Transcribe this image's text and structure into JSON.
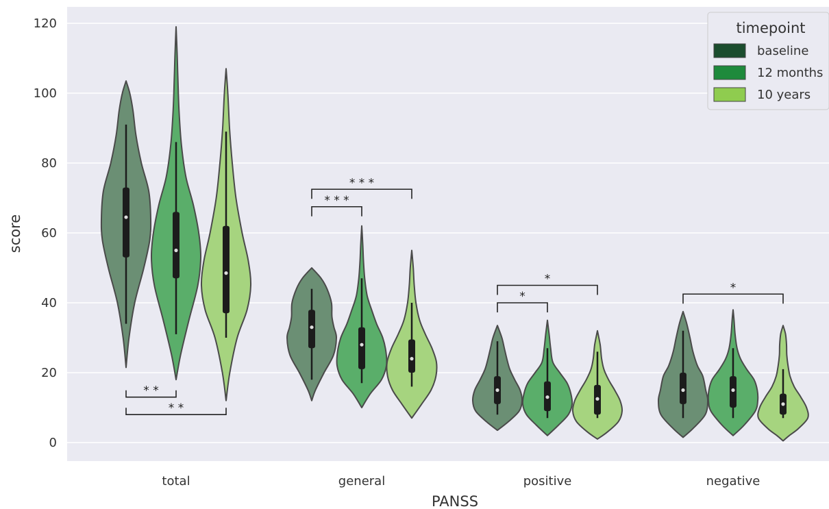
{
  "chart_data": {
    "type": "violin",
    "xlabel": "PANSS",
    "ylabel": "score",
    "ylim": [
      -5,
      123
    ],
    "yticks": [
      0,
      20,
      40,
      60,
      80,
      100,
      120
    ],
    "grid": true,
    "categories": [
      "total",
      "general",
      "positive",
      "negative"
    ],
    "legend": {
      "title": "timepoint",
      "placement": "top-right",
      "entries": [
        "baseline",
        "12 months",
        "10 years"
      ]
    },
    "colors": {
      "baseline": "#1b4d2e",
      "12 months": "#1e8a3c",
      "10 years": "#8fcc4f",
      "baseline_violin": "#6b8f74",
      "12 months_violin": "#5aae6a",
      "10 years_violin": "#a6d47f",
      "background": "#eaeaf2",
      "grid": "#ffffff",
      "outline": "#4a4a4a",
      "box": "#1c1c1c"
    },
    "series": [
      {
        "name": "baseline",
        "violins": [
          {
            "category": "total",
            "min": 21.5,
            "max": 103.5,
            "q1": 53,
            "median": 64.5,
            "q3": 73,
            "wlow": 34,
            "whigh": 91,
            "profile": [
              [
                21.5,
                0.0
              ],
              [
                30,
                0.12
              ],
              [
                40,
                0.35
              ],
              [
                50,
                0.72
              ],
              [
                58,
                0.96
              ],
              [
                64,
                1.0
              ],
              [
                72,
                0.92
              ],
              [
                80,
                0.62
              ],
              [
                88,
                0.4
              ],
              [
                95,
                0.28
              ],
              [
                100,
                0.15
              ],
              [
                103.5,
                0.0
              ]
            ]
          },
          {
            "category": "general",
            "min": 12,
            "max": 50,
            "q1": 27,
            "median": 33,
            "q3": 38,
            "wlow": 18,
            "whigh": 44,
            "profile": [
              [
                12,
                0.0
              ],
              [
                15,
                0.15
              ],
              [
                20,
                0.5
              ],
              [
                25,
                0.88
              ],
              [
                30,
                1.0
              ],
              [
                33,
                0.9
              ],
              [
                36,
                0.82
              ],
              [
                40,
                0.8
              ],
              [
                44,
                0.62
              ],
              [
                47,
                0.38
              ],
              [
                50,
                0.0
              ]
            ]
          },
          {
            "category": "positive",
            "min": 3.5,
            "max": 33.5,
            "q1": 11,
            "median": 15,
            "q3": 19,
            "wlow": 8,
            "whigh": 29,
            "profile": [
              [
                3.5,
                0.0
              ],
              [
                6,
                0.45
              ],
              [
                9,
                0.88
              ],
              [
                12,
                1.0
              ],
              [
                15,
                0.92
              ],
              [
                18,
                0.7
              ],
              [
                21,
                0.5
              ],
              [
                24,
                0.38
              ],
              [
                27,
                0.28
              ],
              [
                30,
                0.18
              ],
              [
                33.5,
                0.0
              ]
            ]
          },
          {
            "category": "negative",
            "min": 1.5,
            "max": 37.5,
            "q1": 11,
            "median": 15,
            "q3": 20,
            "wlow": 7,
            "whigh": 32,
            "profile": [
              [
                1.5,
                0.0
              ],
              [
                4,
                0.4
              ],
              [
                8,
                0.9
              ],
              [
                12,
                1.0
              ],
              [
                15,
                0.92
              ],
              [
                19,
                0.8
              ],
              [
                22,
                0.58
              ],
              [
                26,
                0.4
              ],
              [
                30,
                0.28
              ],
              [
                34,
                0.15
              ],
              [
                37.5,
                0.0
              ]
            ]
          }
        ]
      },
      {
        "name": "12 months",
        "violins": [
          {
            "category": "total",
            "min": 18,
            "max": 119,
            "q1": 47,
            "median": 55,
            "q3": 66,
            "wlow": 31,
            "whigh": 86,
            "profile": [
              [
                18,
                0.0
              ],
              [
                25,
                0.18
              ],
              [
                35,
                0.52
              ],
              [
                45,
                0.88
              ],
              [
                53,
                1.0
              ],
              [
                60,
                0.92
              ],
              [
                68,
                0.7
              ],
              [
                76,
                0.4
              ],
              [
                85,
                0.22
              ],
              [
                95,
                0.12
              ],
              [
                105,
                0.07
              ],
              [
                112,
                0.04
              ],
              [
                119,
                0.0
              ]
            ]
          },
          {
            "category": "general",
            "min": 10,
            "max": 62,
            "q1": 21,
            "median": 28,
            "q3": 33,
            "wlow": 17,
            "whigh": 47,
            "profile": [
              [
                10,
                0.0
              ],
              [
                14,
                0.35
              ],
              [
                18,
                0.8
              ],
              [
                22,
                1.0
              ],
              [
                26,
                0.98
              ],
              [
                30,
                0.85
              ],
              [
                34,
                0.6
              ],
              [
                38,
                0.4
              ],
              [
                42,
                0.22
              ],
              [
                47,
                0.12
              ],
              [
                52,
                0.07
              ],
              [
                57,
                0.04
              ],
              [
                62,
                0.0
              ]
            ]
          },
          {
            "category": "positive",
            "min": 2,
            "max": 35,
            "q1": 9,
            "median": 13,
            "q3": 17.5,
            "wlow": 7,
            "whigh": 27,
            "profile": [
              [
                2,
                0.0
              ],
              [
                5,
                0.45
              ],
              [
                8,
                0.85
              ],
              [
                11,
                1.0
              ],
              [
                14,
                0.95
              ],
              [
                17,
                0.8
              ],
              [
                20,
                0.5
              ],
              [
                23,
                0.22
              ],
              [
                27,
                0.13
              ],
              [
                31,
                0.07
              ],
              [
                35,
                0.0
              ]
            ]
          },
          {
            "category": "negative",
            "min": 2,
            "max": 38,
            "q1": 10,
            "median": 15,
            "q3": 19,
            "wlow": 7,
            "whigh": 27,
            "profile": [
              [
                2,
                0.0
              ],
              [
                5,
                0.45
              ],
              [
                9,
                0.9
              ],
              [
                12,
                1.0
              ],
              [
                15,
                0.98
              ],
              [
                18,
                0.85
              ],
              [
                21,
                0.55
              ],
              [
                24,
                0.3
              ],
              [
                27,
                0.16
              ],
              [
                31,
                0.08
              ],
              [
                35,
                0.04
              ],
              [
                38,
                0.0
              ]
            ]
          }
        ]
      },
      {
        "name": "10 years",
        "violins": [
          {
            "category": "total",
            "min": 12,
            "max": 107,
            "q1": 37,
            "median": 48.5,
            "q3": 62,
            "wlow": 30,
            "whigh": 89,
            "profile": [
              [
                12,
                0.0
              ],
              [
                20,
                0.15
              ],
              [
                30,
                0.45
              ],
              [
                38,
                0.85
              ],
              [
                45,
                1.0
              ],
              [
                52,
                0.9
              ],
              [
                60,
                0.65
              ],
              [
                70,
                0.4
              ],
              [
                80,
                0.25
              ],
              [
                90,
                0.14
              ],
              [
                100,
                0.07
              ],
              [
                107,
                0.0
              ]
            ]
          },
          {
            "category": "general",
            "min": 7,
            "max": 55,
            "q1": 20,
            "median": 24,
            "q3": 29.5,
            "wlow": 16,
            "whigh": 40,
            "profile": [
              [
                7,
                0.0
              ],
              [
                11,
                0.4
              ],
              [
                15,
                0.78
              ],
              [
                19,
                0.98
              ],
              [
                23,
                1.0
              ],
              [
                27,
                0.82
              ],
              [
                31,
                0.55
              ],
              [
                35,
                0.32
              ],
              [
                40,
                0.17
              ],
              [
                45,
                0.1
              ],
              [
                50,
                0.06
              ],
              [
                55,
                0.0
              ]
            ]
          },
          {
            "category": "positive",
            "min": 1,
            "max": 32,
            "q1": 8,
            "median": 12.5,
            "q3": 16.5,
            "wlow": 7,
            "whigh": 26,
            "profile": [
              [
                1,
                0.0
              ],
              [
                3,
                0.4
              ],
              [
                6,
                0.85
              ],
              [
                9,
                1.0
              ],
              [
                12,
                0.92
              ],
              [
                15,
                0.7
              ],
              [
                18,
                0.45
              ],
              [
                21,
                0.26
              ],
              [
                24,
                0.17
              ],
              [
                28,
                0.11
              ],
              [
                32,
                0.0
              ]
            ]
          },
          {
            "category": "negative",
            "min": 0.5,
            "max": 33.5,
            "q1": 8,
            "median": 11,
            "q3": 14,
            "wlow": 7,
            "whigh": 21,
            "profile": [
              [
                0.5,
                0.0
              ],
              [
                2,
                0.25
              ],
              [
                4,
                0.62
              ],
              [
                7,
                1.0
              ],
              [
                10,
                0.95
              ],
              [
                13,
                0.72
              ],
              [
                16,
                0.45
              ],
              [
                19,
                0.28
              ],
              [
                22,
                0.2
              ],
              [
                25,
                0.15
              ],
              [
                28,
                0.14
              ],
              [
                31,
                0.1
              ],
              [
                33.5,
                0.0
              ]
            ]
          }
        ]
      }
    ],
    "significance": [
      {
        "category": "total",
        "from": "baseline",
        "to": "12 months",
        "label": "* *",
        "y": 13,
        "direction": "below"
      },
      {
        "category": "total",
        "from": "baseline",
        "to": "10 years",
        "label": "* *",
        "y": 8,
        "direction": "below"
      },
      {
        "category": "general",
        "from": "baseline",
        "to": "12 months",
        "label": "* * *",
        "y": 67.5,
        "direction": "above"
      },
      {
        "category": "general",
        "from": "baseline",
        "to": "10 years",
        "label": "* * *",
        "y": 72.5,
        "direction": "above"
      },
      {
        "category": "positive",
        "from": "baseline",
        "to": "12 months",
        "label": "*",
        "y": 40,
        "direction": "above"
      },
      {
        "category": "positive",
        "from": "baseline",
        "to": "10 years",
        "label": "*",
        "y": 45,
        "direction": "above"
      },
      {
        "category": "negative",
        "from": "baseline",
        "to": "10 years",
        "label": "*",
        "y": 42.5,
        "direction": "above"
      }
    ]
  }
}
